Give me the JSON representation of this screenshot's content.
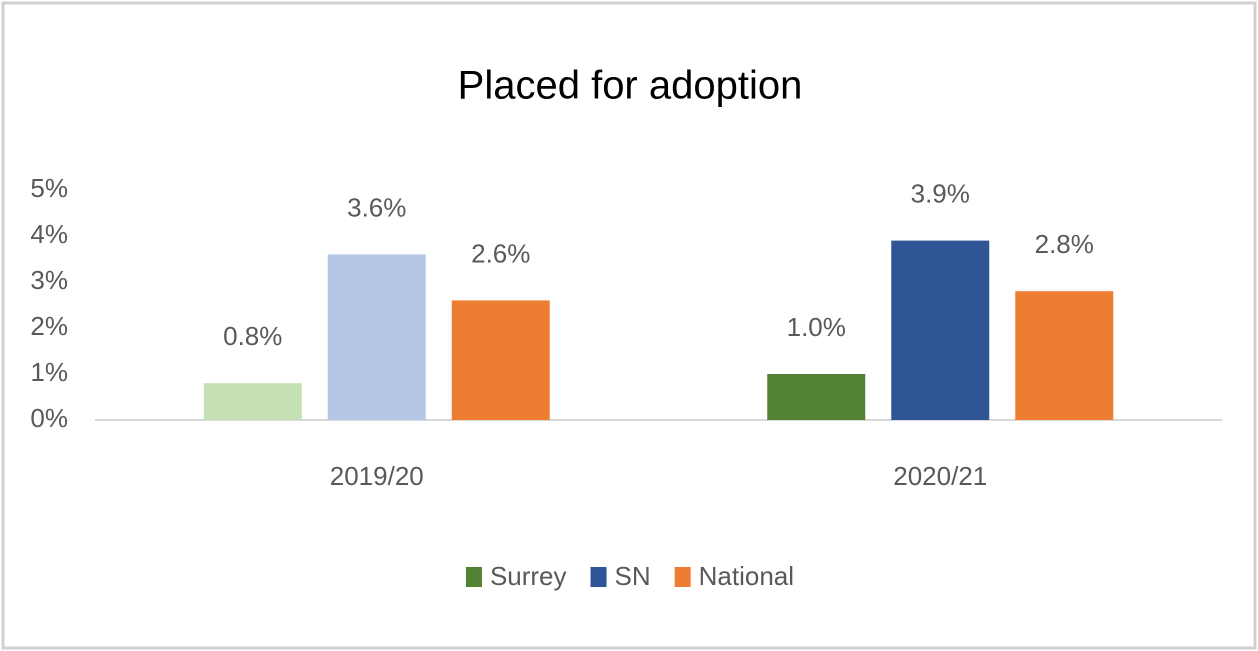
{
  "chart_data": {
    "type": "bar",
    "title": "Placed for adoption",
    "categories": [
      "2019/20",
      "2020/21"
    ],
    "series": [
      {
        "name": "Surrey",
        "color": "#548235",
        "colors": [
          "#c5e0b4",
          "#548235"
        ],
        "values": [
          0.8,
          1.0
        ],
        "value_labels": [
          "0.8%",
          "1.0%"
        ]
      },
      {
        "name": "SN",
        "color": "#2f5597",
        "colors": [
          "#b4c7e7",
          "#2f5597"
        ],
        "values": [
          3.6,
          3.9
        ],
        "value_labels": [
          "3.6%",
          "3.9%"
        ]
      },
      {
        "name": "National",
        "color": "#ed7d31",
        "colors": [
          "#ed7d31",
          "#ed7d31"
        ],
        "values": [
          2.6,
          2.8
        ],
        "value_labels": [
          "2.6%",
          "2.8%"
        ]
      }
    ],
    "ylim": [
      0,
      5
    ],
    "yticks": [
      {
        "value": 0,
        "label": "0%"
      },
      {
        "value": 1,
        "label": "1%"
      },
      {
        "value": 2,
        "label": "2%"
      },
      {
        "value": 3,
        "label": "3%"
      },
      {
        "value": 4,
        "label": "4%"
      },
      {
        "value": 5,
        "label": "5%"
      }
    ],
    "grid": false,
    "legend": "bottom"
  }
}
